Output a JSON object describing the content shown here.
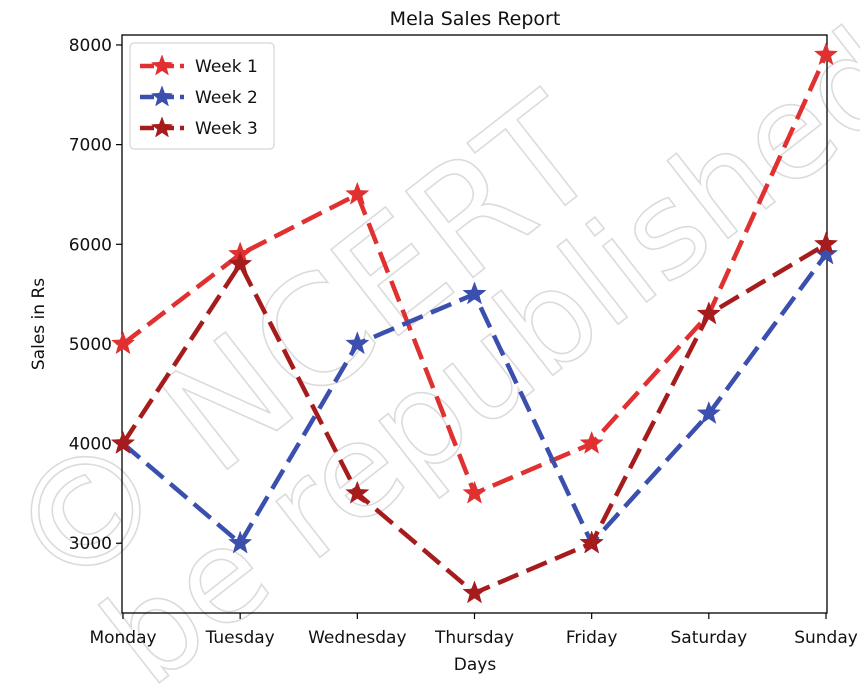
{
  "chart_data": {
    "type": "line",
    "title": "Mela Sales Report",
    "xlabel": "Days",
    "ylabel": "Sales in Rs",
    "categories": [
      "Monday",
      "Tuesday",
      "Wednesday",
      "Thursday",
      "Friday",
      "Saturday",
      "Sunday"
    ],
    "yticks": [
      3000,
      4000,
      5000,
      6000,
      7000,
      8000
    ],
    "ylim": [
      2300,
      8100
    ],
    "grid": false,
    "legend_position": "top-left",
    "series": [
      {
        "name": "Week 1",
        "color": "#e03030",
        "values": [
          5000,
          5900,
          6500,
          3500,
          4000,
          5300,
          7900
        ]
      },
      {
        "name": "Week 2",
        "color": "#3a4fae",
        "values": [
          4000,
          3000,
          5000,
          5500,
          3000,
          4300,
          5900
        ]
      },
      {
        "name": "Week 3",
        "color": "#a61c1c",
        "values": [
          4000,
          5800,
          3500,
          2500,
          3000,
          5300,
          6000
        ]
      }
    ]
  },
  "watermark": {
    "line1": "© NCERT",
    "line2": "be republished"
  }
}
